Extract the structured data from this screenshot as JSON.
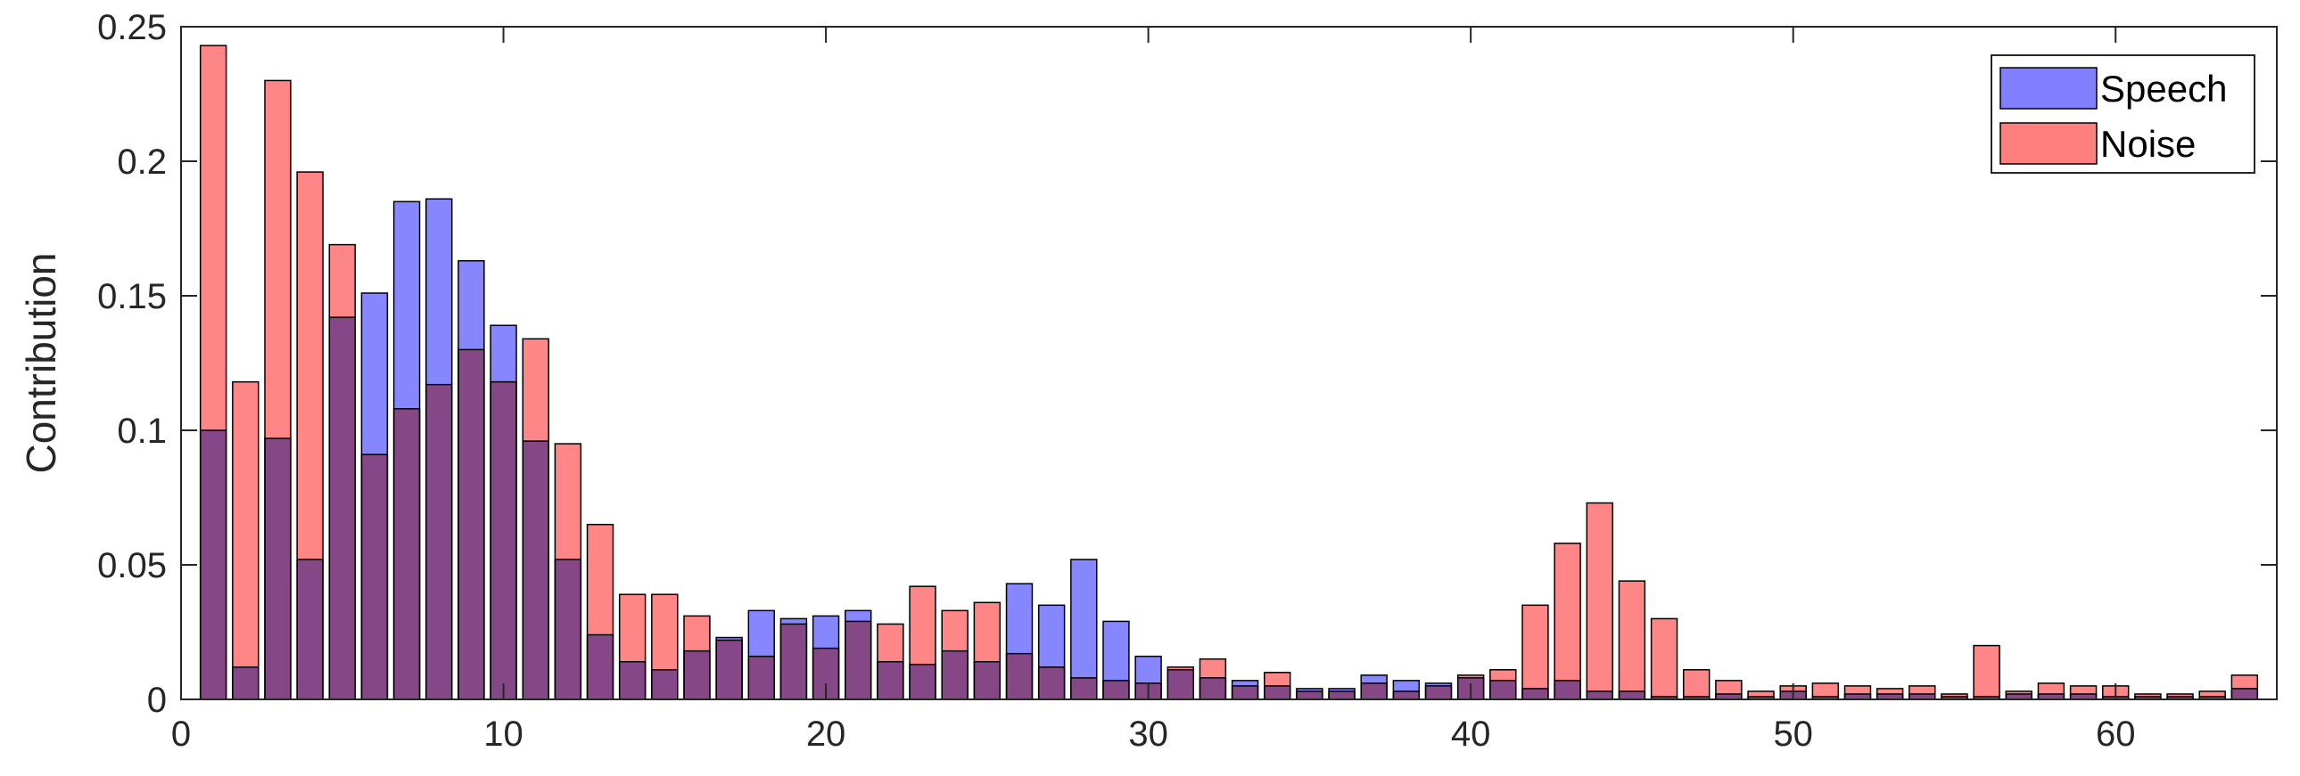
{
  "chart_data": {
    "type": "bar",
    "xlabel": "",
    "ylabel": "Contribution",
    "xlim": [
      0,
      65
    ],
    "ylim": [
      0,
      0.25
    ],
    "xticks": [
      0,
      10,
      20,
      30,
      40,
      50,
      60
    ],
    "xtick_labels": [
      "0",
      "10",
      "20",
      "30",
      "40",
      "50",
      "60"
    ],
    "yticks": [
      0,
      0.05,
      0.1,
      0.15,
      0.2,
      0.25
    ],
    "ytick_labels": [
      "0",
      "0.05",
      "0.1",
      "0.15",
      "0.2",
      "0.25"
    ],
    "legend_position": "top-right",
    "grid": false,
    "x": [
      1,
      2,
      3,
      4,
      5,
      6,
      7,
      8,
      9,
      10,
      11,
      12,
      13,
      14,
      15,
      16,
      17,
      18,
      19,
      20,
      21,
      22,
      23,
      24,
      25,
      26,
      27,
      28,
      29,
      30,
      31,
      32,
      33,
      34,
      35,
      36,
      37,
      38,
      39,
      40,
      41,
      42,
      43,
      44,
      45,
      46,
      47,
      48,
      49,
      50,
      51,
      52,
      53,
      54,
      55,
      56,
      57,
      58,
      59,
      60,
      61,
      62,
      63,
      64
    ],
    "series": [
      {
        "name": "Speech",
        "color": "#7f7fff",
        "values": [
          0.1,
          0.012,
          0.097,
          0.052,
          0.142,
          0.151,
          0.185,
          0.186,
          0.163,
          0.139,
          0.096,
          0.052,
          0.024,
          0.014,
          0.011,
          0.018,
          0.023,
          0.033,
          0.03,
          0.031,
          0.033,
          0.014,
          0.013,
          0.018,
          0.014,
          0.043,
          0.035,
          0.052,
          0.029,
          0.016,
          0.011,
          0.008,
          0.007,
          0.005,
          0.004,
          0.004,
          0.009,
          0.007,
          0.006,
          0.008,
          0.007,
          0.004,
          0.007,
          0.003,
          0.003,
          0.001,
          0.001,
          0.002,
          0.001,
          0.003,
          0.001,
          0.002,
          0.002,
          0.002,
          0.001,
          0.001,
          0.002,
          0.002,
          0.002,
          0.001,
          0.001,
          0.001,
          0.001,
          0.004
        ]
      },
      {
        "name": "Noise",
        "color": "#ff7f7f",
        "values": [
          0.243,
          0.118,
          0.23,
          0.196,
          0.169,
          0.091,
          0.108,
          0.117,
          0.13,
          0.118,
          0.134,
          0.095,
          0.065,
          0.039,
          0.039,
          0.031,
          0.022,
          0.016,
          0.028,
          0.019,
          0.029,
          0.028,
          0.042,
          0.033,
          0.036,
          0.017,
          0.012,
          0.008,
          0.007,
          0.006,
          0.012,
          0.015,
          0.005,
          0.01,
          0.003,
          0.003,
          0.006,
          0.003,
          0.005,
          0.009,
          0.011,
          0.035,
          0.058,
          0.073,
          0.044,
          0.03,
          0.011,
          0.007,
          0.003,
          0.005,
          0.006,
          0.005,
          0.004,
          0.005,
          0.002,
          0.02,
          0.003,
          0.006,
          0.005,
          0.005,
          0.002,
          0.002,
          0.003,
          0.009
        ]
      }
    ]
  }
}
